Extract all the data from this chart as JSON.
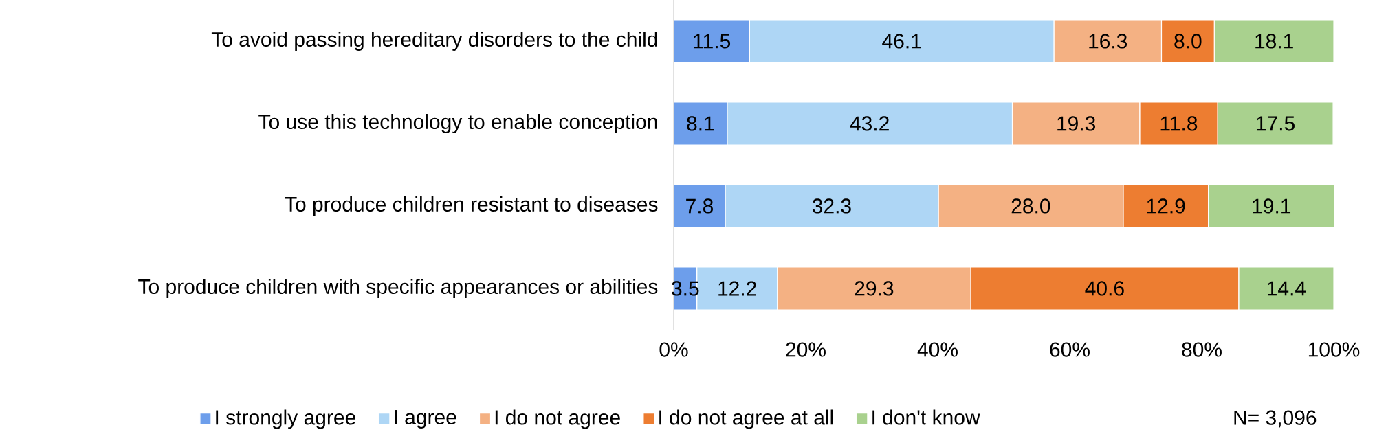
{
  "chart_data": {
    "type": "bar",
    "orientation": "horizontal",
    "stacked": true,
    "categories": [
      "To avoid passing hereditary disorders to the child",
      "To use this technology to enable conception",
      "To produce children resistant to diseases",
      "To produce children with specific appearances or abilities"
    ],
    "series": [
      {
        "name": "I strongly agree",
        "color": "#6d9eeb",
        "values": [
          11.5,
          8.1,
          7.8,
          3.5
        ],
        "value_labels": [
          "11.5",
          "8.1",
          "7.8",
          "3.5"
        ]
      },
      {
        "name": "I agree",
        "color": "#aed6f5",
        "values": [
          46.1,
          43.2,
          32.3,
          12.2
        ],
        "value_labels": [
          "46.1",
          "43.2",
          "32.3",
          "12.2"
        ]
      },
      {
        "name": "I do not agree",
        "color": "#f4b183",
        "values": [
          16.3,
          19.3,
          28.0,
          29.3
        ],
        "value_labels": [
          "16.3",
          "19.3",
          "28.0",
          "29.3"
        ]
      },
      {
        "name": "I do not agree at all",
        "color": "#ed7d31",
        "values": [
          8.0,
          11.8,
          12.9,
          40.6
        ],
        "value_labels": [
          "8.0",
          "11.8",
          "12.9",
          "40.6"
        ]
      },
      {
        "name": "I don't know",
        "color": "#a9d18e",
        "values": [
          18.1,
          17.5,
          19.1,
          14.4
        ],
        "value_labels": [
          "18.1",
          "17.5",
          "19.1",
          "14.4"
        ]
      }
    ],
    "xlim": [
      0,
      100
    ],
    "xticks": [
      {
        "value": 0,
        "label": "0%"
      },
      {
        "value": 20,
        "label": "20%"
      },
      {
        "value": 40,
        "label": "40%"
      },
      {
        "value": 60,
        "label": "60%"
      },
      {
        "value": 80,
        "label": "80%"
      },
      {
        "value": 100,
        "label": "100%"
      }
    ],
    "legend": "bottom",
    "grid": false,
    "annotations": [
      "N= 3,096"
    ]
  }
}
